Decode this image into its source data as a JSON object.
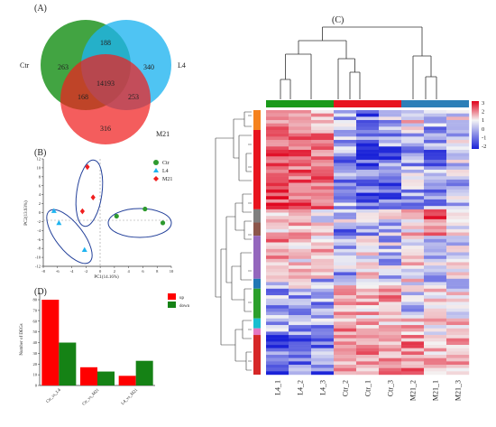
{
  "panel_labels": {
    "a": "(A)",
    "b": "(B)",
    "c": "(C)",
    "d": "(D)"
  },
  "colors": {
    "ctr": "#2e9a2e",
    "l4": "#1eb4f0",
    "m21": "#f01e1e",
    "up": "#ff0000",
    "down": "#158215",
    "hm_high": "#e0001a",
    "hm_mid": "#f4f4f4",
    "hm_low": "#1a22d8"
  },
  "chart_data": [
    {
      "type": "venn",
      "sets": [
        {
          "name": "Ctr",
          "only": "263",
          "color": "#2e9a2e"
        },
        {
          "name": "L4",
          "only": "340",
          "color": "#1eb4f0"
        },
        {
          "name": "M21",
          "only": "316",
          "color": "#f01e1e"
        }
      ],
      "intersections": {
        "ctr_l4": "188",
        "ctr_m21": "168",
        "l4_m21": "253",
        "all": "14193"
      }
    },
    {
      "type": "scatter",
      "xlabel": "PC1(14.16%)",
      "ylabel": "PC2(13.93%)",
      "xlim": [
        -8,
        10
      ],
      "ylim": [
        -12,
        12
      ],
      "xticks": [
        "-8",
        "-6",
        "-4",
        "-2",
        "0",
        "2",
        "4",
        "6",
        "8",
        "10"
      ],
      "yticks": [
        "12",
        "10",
        "8",
        "6",
        "4",
        "2",
        "0",
        "-2",
        "-4",
        "-6",
        "-8",
        "-10",
        "-12"
      ],
      "legend_position": "top-right",
      "series": [
        {
          "name": "Ctr",
          "marker": "circle",
          "color": "#2e9a2e",
          "points": [
            [
              2.3,
              -0.8
            ],
            [
              6.3,
              0.8
            ],
            [
              8.8,
              -2.3
            ]
          ]
        },
        {
          "name": "L4",
          "marker": "triangle",
          "color": "#1eb4f0",
          "points": [
            [
              -6.5,
              0.4
            ],
            [
              -5.8,
              -2.3
            ],
            [
              -2.2,
              -8.3
            ]
          ]
        },
        {
          "name": "M21",
          "marker": "diamond",
          "color": "#f01e1e",
          "points": [
            [
              -1.8,
              10.2
            ],
            [
              -1.0,
              3.4
            ],
            [
              -2.5,
              0.3
            ]
          ]
        }
      ]
    },
    {
      "type": "bar",
      "ylabel": "Number of DEGs",
      "ylim": [
        0,
        80
      ],
      "yticks": [
        "0",
        "10",
        "20",
        "30",
        "40",
        "50",
        "60",
        "70",
        "80"
      ],
      "categories": [
        "Ctr_vs_L4",
        "Ctr_vs_M21",
        "L4_vs_M21"
      ],
      "legend_position": "top-right",
      "series": [
        {
          "name": "up",
          "color": "#ff0000",
          "values": [
            80,
            17,
            9
          ]
        },
        {
          "name": "down",
          "color": "#158215",
          "values": [
            40,
            13,
            23
          ]
        }
      ]
    },
    {
      "type": "heatmap",
      "columns": [
        "L4_1",
        "L4_2",
        "L4_3",
        "Ctr_2",
        "Ctr_1",
        "Ctr_3",
        "M21_2",
        "M21_1",
        "M21_3"
      ],
      "column_groups": [
        {
          "name": "L4",
          "color": "#1a9a1a",
          "span": 3
        },
        {
          "name": "Ctr",
          "color": "#e8141e",
          "span": 3
        },
        {
          "name": "M21",
          "color": "#2c7fb8",
          "span": 3
        }
      ],
      "n_rows": 80,
      "color_scale": {
        "min": -2,
        "max": 3,
        "ticks": [
          "3",
          "2",
          "1",
          "0",
          "-1",
          "-2"
        ]
      },
      "row_clusters": [
        {
          "color": "#f5821e",
          "rows": 6
        },
        {
          "color": "#e8141e",
          "rows": 24
        },
        {
          "color": "#7f7f7f",
          "rows": 4
        },
        {
          "color": "#8c564b",
          "rows": 4
        },
        {
          "color": "#9467bd",
          "rows": 13
        },
        {
          "color": "#1f77b4",
          "rows": 3
        },
        {
          "color": "#2ca02c",
          "rows": 9
        },
        {
          "color": "#17becf",
          "rows": 3
        },
        {
          "color": "#e377c2",
          "rows": 2
        },
        {
          "color": "#d62728",
          "rows": 12
        }
      ],
      "cluster_patterns": [
        [
          0.9,
          0.8,
          0.6,
          -0.3,
          -0.9,
          -0.5,
          0.2,
          -0.6,
          -0.1
        ],
        [
          1.4,
          1.2,
          1.0,
          -0.6,
          -1.0,
          -0.8,
          -0.5,
          -0.7,
          -0.3
        ],
        [
          0.2,
          0.5,
          0.1,
          -0.2,
          0.3,
          -0.1,
          0.2,
          1.3,
          0.2
        ],
        [
          0.6,
          0.4,
          0.2,
          -0.6,
          -0.4,
          -0.3,
          0.3,
          0.9,
          0.2
        ],
        [
          0.8,
          0.4,
          0.5,
          -0.4,
          0.1,
          -0.3,
          0.2,
          -0.2,
          -0.1
        ],
        [
          -0.2,
          0.1,
          -0.3,
          0.2,
          0.3,
          0.0,
          0.1,
          -0.2,
          0.0
        ],
        [
          -0.6,
          -0.4,
          -0.5,
          0.6,
          0.5,
          0.7,
          -0.3,
          0.2,
          0.1
        ],
        [
          -0.8,
          -0.6,
          -0.5,
          0.3,
          0.4,
          0.6,
          0.5,
          0.3,
          0.3
        ],
        [
          -0.4,
          -0.6,
          -0.3,
          0.9,
          0.2,
          0.3,
          0.7,
          0.1,
          0.2
        ],
        [
          -1.0,
          -0.9,
          -0.8,
          0.5,
          0.8,
          0.7,
          0.9,
          0.6,
          0.5
        ]
      ]
    }
  ]
}
